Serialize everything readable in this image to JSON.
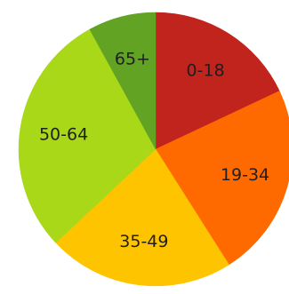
{
  "chart_data": {
    "type": "pie",
    "title": "",
    "start": "12 o'clock",
    "direction": "clockwise",
    "legend": "none",
    "categories": [
      "0-18",
      "19-34",
      "35-49",
      "50-64",
      "65+"
    ],
    "values": [
      18,
      23,
      22,
      29,
      8
    ],
    "colors": [
      "#c1241c",
      "#ff6a00",
      "#ffc400",
      "#a8d818",
      "#62a324"
    ]
  }
}
